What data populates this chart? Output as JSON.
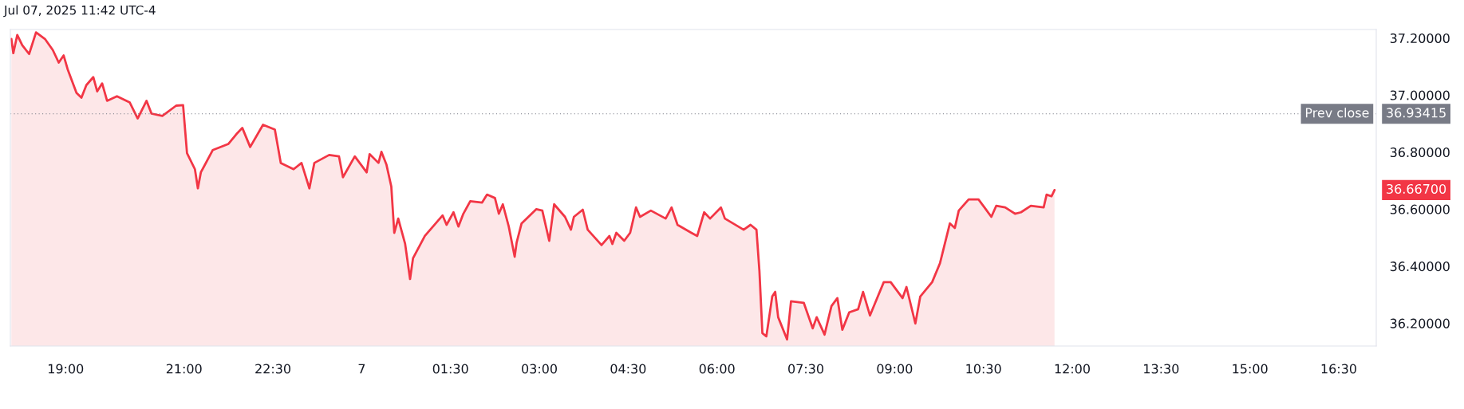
{
  "chart_data": {
    "type": "area",
    "title": "Jul 07, 2025 11:42 UTC-4",
    "x": [
      "2025-07-06T18:05",
      "2025-07-06T18:07",
      "2025-07-06T18:11",
      "2025-07-06T18:16",
      "2025-07-06T18:23",
      "2025-07-06T18:30",
      "2025-07-06T18:39",
      "2025-07-06T18:47",
      "2025-07-06T18:53",
      "2025-07-06T18:58",
      "2025-07-06T19:02",
      "2025-07-06T19:11",
      "2025-07-06T19:16",
      "2025-07-06T19:21",
      "2025-07-06T19:28",
      "2025-07-06T19:32",
      "2025-07-06T19:37",
      "2025-07-06T19:42",
      "2025-07-06T19:52",
      "2025-07-06T20:05",
      "2025-07-06T20:13",
      "2025-07-06T20:22",
      "2025-07-06T20:27",
      "2025-07-06T20:38",
      "2025-07-06T20:52",
      "2025-07-06T20:59",
      "2025-07-06T21:03",
      "2025-07-06T21:11",
      "2025-07-06T21:14",
      "2025-07-06T21:17",
      "2025-07-06T21:29",
      "2025-07-06T21:45",
      "2025-07-06T21:53",
      "2025-07-06T21:59",
      "2025-07-06T22:07",
      "2025-07-06T22:20",
      "2025-07-06T22:32",
      "2025-07-06T22:38",
      "2025-07-06T22:51",
      "2025-07-06T22:59",
      "2025-07-06T23:07",
      "2025-07-06T23:12",
      "2025-07-06T23:27",
      "2025-07-06T23:37",
      "2025-07-06T23:41",
      "2025-07-06T23:53",
      "2025-07-07T00:05",
      "2025-07-07T00:08",
      "2025-07-07T00:17",
      "2025-07-07T00:20",
      "2025-07-07T00:25",
      "2025-07-07T00:30",
      "2025-07-07T00:33",
      "2025-07-07T00:37",
      "2025-07-07T00:44",
      "2025-07-07T00:49",
      "2025-07-07T00:52",
      "2025-07-07T01:04",
      "2025-07-07T01:15",
      "2025-07-07T01:22",
      "2025-07-07T01:26",
      "2025-07-07T01:33",
      "2025-07-07T01:38",
      "2025-07-07T01:43",
      "2025-07-07T01:50",
      "2025-07-07T02:02",
      "2025-07-07T02:07",
      "2025-07-07T02:15",
      "2025-07-07T02:19",
      "2025-07-07T02:23",
      "2025-07-07T02:29",
      "2025-07-07T02:35",
      "2025-07-07T02:37",
      "2025-07-07T02:42",
      "2025-07-07T02:57",
      "2025-07-07T03:03",
      "2025-07-07T03:10",
      "2025-07-07T03:15",
      "2025-07-07T03:26",
      "2025-07-07T03:32",
      "2025-07-07T03:35",
      "2025-07-07T03:44",
      "2025-07-07T03:49",
      "2025-07-07T04:03",
      "2025-07-07T04:11",
      "2025-07-07T04:14",
      "2025-07-07T04:18",
      "2025-07-07T04:26",
      "2025-07-07T04:32",
      "2025-07-07T04:38",
      "2025-07-07T04:42",
      "2025-07-07T04:53",
      "2025-07-07T05:08",
      "2025-07-07T05:14",
      "2025-07-07T05:20",
      "2025-07-07T05:34",
      "2025-07-07T05:40",
      "2025-07-07T05:47",
      "2025-07-07T05:53",
      "2025-07-07T06:04",
      "2025-07-07T06:08",
      "2025-07-07T06:27",
      "2025-07-07T06:34",
      "2025-07-07T06:40",
      "2025-07-07T06:43",
      "2025-07-07T06:46",
      "2025-07-07T06:50",
      "2025-07-07T06:56",
      "2025-07-07T06:59",
      "2025-07-07T07:02",
      "2025-07-07T07:11",
      "2025-07-07T07:15",
      "2025-07-07T07:28",
      "2025-07-07T07:37",
      "2025-07-07T07:41",
      "2025-07-07T07:49",
      "2025-07-07T07:56",
      "2025-07-07T08:02",
      "2025-07-07T08:07",
      "2025-07-07T08:14",
      "2025-07-07T08:23",
      "2025-07-07T08:28",
      "2025-07-07T08:35",
      "2025-07-07T08:43",
      "2025-07-07T08:49",
      "2025-07-07T08:56",
      "2025-07-07T09:08",
      "2025-07-07T09:12",
      "2025-07-07T09:21",
      "2025-07-07T09:26",
      "2025-07-07T09:38",
      "2025-07-07T09:46",
      "2025-07-07T09:56",
      "2025-07-07T10:01",
      "2025-07-07T10:05",
      "2025-07-07T10:15",
      "2025-07-07T10:20",
      "2025-07-07T10:25",
      "2025-07-07T10:31",
      "2025-07-07T10:38",
      "2025-07-07T10:43",
      "2025-07-07T10:52",
      "2025-07-07T11:02",
      "2025-07-07T11:08",
      "2025-07-07T11:18",
      "2025-07-07T11:31",
      "2025-07-07T11:34",
      "2025-07-07T11:39",
      "2025-07-07T11:42"
    ],
    "series": [
      {
        "color": "#f23645",
        "values": [
          37.197,
          37.147,
          37.211,
          37.175,
          37.144,
          37.22,
          37.197,
          37.158,
          37.114,
          37.139,
          37.091,
          37.008,
          36.991,
          37.035,
          37.063,
          37.013,
          37.041,
          36.98,
          36.996,
          36.974,
          36.918,
          36.98,
          36.935,
          36.927,
          36.963,
          36.965,
          36.796,
          36.74,
          36.673,
          36.729,
          36.807,
          36.829,
          36.863,
          36.885,
          36.818,
          36.896,
          36.879,
          36.762,
          36.74,
          36.762,
          36.673,
          36.762,
          36.79,
          36.785,
          36.712,
          36.785,
          36.729,
          36.793,
          36.762,
          36.801,
          36.757,
          36.679,
          36.517,
          36.567,
          36.478,
          36.355,
          36.428,
          36.506,
          36.55,
          36.578,
          36.545,
          36.589,
          36.539,
          36.584,
          36.628,
          36.623,
          36.651,
          36.639,
          36.584,
          36.617,
          36.539,
          36.433,
          36.483,
          36.55,
          36.6,
          36.595,
          36.489,
          36.617,
          36.573,
          36.528,
          36.573,
          36.598,
          36.528,
          36.474,
          36.506,
          36.478,
          36.517,
          36.489,
          36.517,
          36.606,
          36.573,
          36.595,
          36.567,
          36.606,
          36.545,
          36.517,
          36.506,
          36.589,
          36.567,
          36.606,
          36.567,
          36.528,
          36.545,
          36.528,
          36.383,
          36.165,
          36.154,
          36.294,
          36.31,
          36.221,
          36.143,
          36.277,
          36.271,
          36.182,
          36.221,
          36.16,
          36.26,
          36.288,
          36.177,
          36.238,
          36.249,
          36.31,
          36.227,
          36.294,
          36.344,
          36.344,
          36.288,
          36.327,
          36.199,
          36.294,
          36.344,
          36.411,
          36.55,
          36.534,
          36.595,
          36.634,
          36.634,
          36.634,
          36.606,
          36.573,
          36.612,
          36.606,
          36.584,
          36.589,
          36.612,
          36.606,
          36.651,
          36.645,
          36.667
        ]
      }
    ],
    "xlim": [
      "2025-07-06T18:04",
      "2025-07-07T17:08"
    ],
    "ylim": [
      36.12,
      37.23
    ],
    "xticks": [
      {
        "value": "2025-07-06T19:00",
        "label": "19:00"
      },
      {
        "value": "2025-07-06T21:00",
        "label": "21:00"
      },
      {
        "value": "2025-07-06T22:30",
        "label": "22:30"
      },
      {
        "value": "2025-07-07T00:00",
        "label": "7"
      },
      {
        "value": "2025-07-07T01:30",
        "label": "01:30"
      },
      {
        "value": "2025-07-07T03:00",
        "label": "03:00"
      },
      {
        "value": "2025-07-07T04:30",
        "label": "04:30"
      },
      {
        "value": "2025-07-07T06:00",
        "label": "06:00"
      },
      {
        "value": "2025-07-07T07:30",
        "label": "07:30"
      },
      {
        "value": "2025-07-07T09:00",
        "label": "09:00"
      },
      {
        "value": "2025-07-07T10:30",
        "label": "10:30"
      },
      {
        "value": "2025-07-07T12:00",
        "label": "12:00"
      },
      {
        "value": "2025-07-07T13:30",
        "label": "13:30"
      },
      {
        "value": "2025-07-07T15:00",
        "label": "15:00"
      },
      {
        "value": "2025-07-07T16:30",
        "label": "16:30"
      }
    ],
    "yticks": [
      {
        "value": 36.2,
        "label": "36.20000"
      },
      {
        "value": 36.4,
        "label": "36.40000"
      },
      {
        "value": 36.6,
        "label": "36.60000"
      },
      {
        "value": 36.8,
        "label": "36.80000"
      },
      {
        "value": 37.0,
        "label": "37.00000"
      },
      {
        "value": 37.2,
        "label": "37.20000"
      }
    ],
    "ref_lines": [
      {
        "axis": "y",
        "value": 36.93415,
        "label": "Prev close",
        "color": "#787b86",
        "line_style": "dotted"
      }
    ],
    "annotations": [
      "36.93415",
      "36.66700"
    ],
    "grid": false,
    "legend": false
  }
}
